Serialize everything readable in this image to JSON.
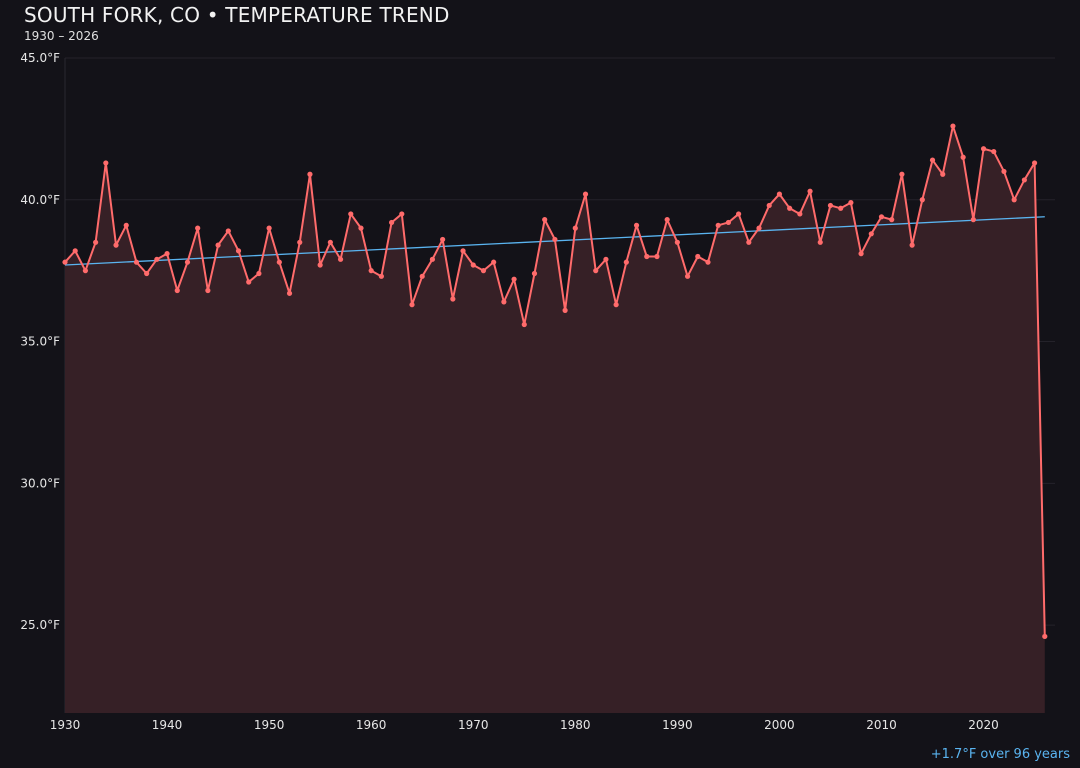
{
  "chart_data": {
    "type": "line",
    "title": "SOUTH FORK, CO • TEMPERATURE TREND",
    "subtitle": "1930 – 2026",
    "annotation": "+1.7°F over 96 years",
    "xlabel": "",
    "ylabel": "",
    "xlim": [
      1930,
      2027
    ],
    "ylim": [
      21.9,
      45.0
    ],
    "grid": true,
    "x_ticks": [
      "1930",
      "1940",
      "1950",
      "1960",
      "1970",
      "1980",
      "1990",
      "2000",
      "2010",
      "2020"
    ],
    "y_ticks": [
      "45.0°F",
      "40.0°F",
      "35.0°F",
      "30.0°F",
      "25.0°F"
    ],
    "colors": {
      "background": "#131218",
      "series": "#ff6b6b",
      "fill": "#362026",
      "trend": "#5ab4f0",
      "grid": "#24222a"
    },
    "series": [
      {
        "x": [
          1930,
          1931,
          1932,
          1933,
          1934,
          1935,
          1936,
          1937,
          1938,
          1939,
          1940,
          1941,
          1942,
          1943,
          1944,
          1945,
          1946,
          1947,
          1948,
          1949,
          1950,
          1951,
          1952,
          1953,
          1954,
          1955,
          1956,
          1957,
          1958,
          1959,
          1960,
          1961,
          1962,
          1963,
          1964,
          1965,
          1966,
          1967,
          1968,
          1969,
          1970,
          1971,
          1972,
          1973,
          1974,
          1975,
          1976,
          1977,
          1978,
          1979,
          1980,
          1981,
          1982,
          1983,
          1984,
          1985,
          1986,
          1987,
          1988,
          1989,
          1990,
          1991,
          1992,
          1993,
          1994,
          1995,
          1996,
          1997,
          1998,
          1999,
          2000,
          2001,
          2002,
          2003,
          2004,
          2005,
          2006,
          2007,
          2008,
          2009,
          2010,
          2011,
          2012,
          2013,
          2014,
          2015,
          2016,
          2017,
          2018,
          2019,
          2020,
          2021,
          2022,
          2023,
          2024,
          2025,
          2026
        ],
        "values": [
          37.8,
          38.2,
          37.5,
          38.5,
          41.3,
          38.4,
          39.1,
          37.8,
          37.4,
          37.9,
          38.1,
          36.8,
          37.8,
          39.0,
          36.8,
          38.4,
          38.9,
          38.2,
          37.1,
          37.4,
          39.0,
          37.8,
          36.7,
          38.5,
          40.9,
          37.7,
          38.5,
          37.9,
          39.5,
          39.0,
          37.5,
          37.3,
          39.2,
          39.5,
          36.3,
          37.3,
          37.9,
          38.6,
          36.5,
          38.2,
          37.7,
          37.5,
          37.8,
          36.4,
          37.2,
          35.6,
          37.4,
          39.3,
          38.6,
          36.1,
          39.0,
          40.2,
          37.5,
          37.9,
          36.3,
          37.8,
          39.1,
          38.0,
          38.0,
          39.3,
          38.5,
          37.3,
          38.0,
          37.8,
          39.1,
          39.2,
          39.5,
          38.5,
          39.0,
          39.8,
          40.2,
          39.7,
          39.5,
          40.3,
          38.5,
          39.8,
          39.7,
          39.9,
          38.1,
          38.8,
          39.4,
          39.3,
          40.9,
          38.4,
          40.0,
          41.4,
          40.9,
          42.6,
          41.5,
          39.3,
          41.8,
          41.7,
          41.0,
          40.0,
          40.7,
          41.3,
          24.6
        ]
      }
    ],
    "trend": {
      "x": [
        1930,
        2026
      ],
      "values": [
        37.7,
        39.4
      ]
    }
  }
}
